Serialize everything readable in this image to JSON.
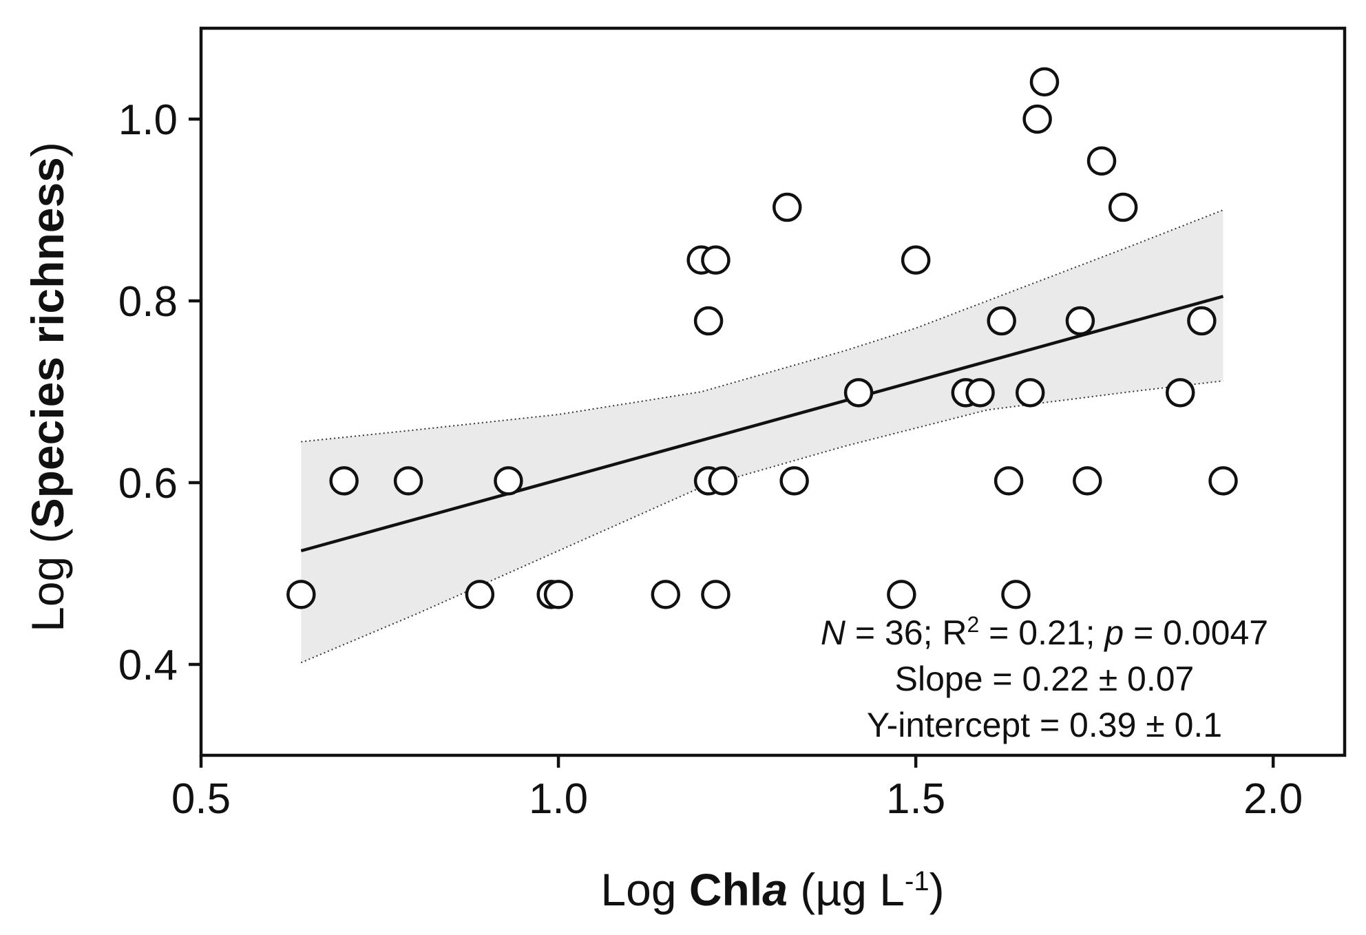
{
  "chart_data": {
    "type": "scatter",
    "x_axis": {
      "title_prefix": "Log ",
      "title_bold": "Chl",
      "title_bold_italic": "a",
      "title_suffix": " (µg L",
      "title_superscript": "-1",
      "title_close": ")",
      "range": [
        0.5,
        2.1
      ],
      "ticks": [
        0.5,
        1.0,
        1.5,
        2.0
      ],
      "tick_labels": [
        "0.5",
        "1.0",
        "1.5",
        "2.0"
      ]
    },
    "y_axis": {
      "title_prefix": "Log (",
      "title_bold": "Species richness",
      "title_suffix": ")",
      "range": [
        0.3,
        1.1
      ],
      "ticks": [
        0.4,
        0.6,
        0.8,
        1.0
      ],
      "tick_labels": [
        "0.4",
        "0.6",
        "0.8",
        "1.0"
      ]
    },
    "points": [
      {
        "x": 0.64,
        "y": 0.477
      },
      {
        "x": 0.7,
        "y": 0.602
      },
      {
        "x": 0.79,
        "y": 0.602
      },
      {
        "x": 0.89,
        "y": 0.477
      },
      {
        "x": 0.93,
        "y": 0.602
      },
      {
        "x": 0.99,
        "y": 0.477
      },
      {
        "x": 1.0,
        "y": 0.477
      },
      {
        "x": 1.15,
        "y": 0.477
      },
      {
        "x": 1.2,
        "y": 0.845
      },
      {
        "x": 1.22,
        "y": 0.845
      },
      {
        "x": 1.21,
        "y": 0.778
      },
      {
        "x": 1.21,
        "y": 0.602
      },
      {
        "x": 1.23,
        "y": 0.602
      },
      {
        "x": 1.22,
        "y": 0.477
      },
      {
        "x": 1.32,
        "y": 0.903
      },
      {
        "x": 1.33,
        "y": 0.602
      },
      {
        "x": 1.42,
        "y": 0.699
      },
      {
        "x": 1.48,
        "y": 0.477
      },
      {
        "x": 1.5,
        "y": 0.845
      },
      {
        "x": 1.57,
        "y": 0.699
      },
      {
        "x": 1.59,
        "y": 0.699
      },
      {
        "x": 1.62,
        "y": 0.778
      },
      {
        "x": 1.63,
        "y": 0.602
      },
      {
        "x": 1.64,
        "y": 0.477
      },
      {
        "x": 1.66,
        "y": 0.699
      },
      {
        "x": 1.67,
        "y": 1.0
      },
      {
        "x": 1.68,
        "y": 1.041
      },
      {
        "x": 1.73,
        "y": 0.778
      },
      {
        "x": 1.74,
        "y": 0.602
      },
      {
        "x": 1.76,
        "y": 0.954
      },
      {
        "x": 1.79,
        "y": 0.903
      },
      {
        "x": 1.87,
        "y": 0.699
      },
      {
        "x": 1.9,
        "y": 0.778
      },
      {
        "x": 1.93,
        "y": 0.602
      }
    ],
    "regression": {
      "x_start": 0.64,
      "x_end": 1.93,
      "y_start": 0.525,
      "y_end": 0.805
    },
    "confidence_band": {
      "x": [
        0.64,
        0.8,
        1.0,
        1.2,
        1.4,
        1.5,
        1.6,
        1.8,
        1.93
      ],
      "upper": [
        0.645,
        0.658,
        0.675,
        0.7,
        0.745,
        0.77,
        0.8,
        0.86,
        0.9
      ],
      "lower": [
        0.402,
        0.455,
        0.525,
        0.595,
        0.64,
        0.66,
        0.68,
        0.7,
        0.712
      ]
    },
    "annotations": {
      "line1_n_italic": "N",
      "line1_n_rest": " = 36; R",
      "line1_r2_sup": "2",
      "line1_r2_rest": " = 0.21; ",
      "line1_p_italic": "p",
      "line1_p_rest": " = 0.0047",
      "line2": "Slope = 0.22 ± 0.07",
      "line3": "Y-intercept = 0.39 ± 0.1"
    },
    "colors": {
      "band": "#e9eae9",
      "line": "#111111",
      "marker_fill": "#ffffff",
      "marker_stroke": "#111111"
    }
  }
}
